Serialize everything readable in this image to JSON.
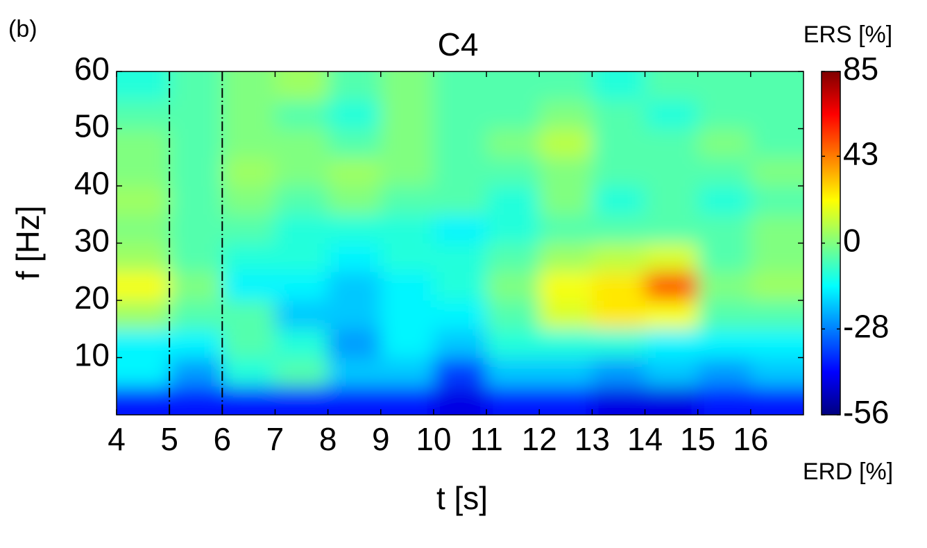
{
  "chart_data": {
    "type": "heatmap",
    "panel_label": "(b)",
    "title": "C4",
    "x_label": "t [s]",
    "y_label": "f [Hz]",
    "colorbar_top_label": "ERS [%]",
    "colorbar_bottom_label": "ERD [%]",
    "x": [
      4.5,
      5.5,
      6.5,
      7.5,
      8.5,
      9.5,
      10.5,
      11.5,
      12.5,
      13.5,
      14.5,
      15.5,
      16.5
    ],
    "y": [
      2.5,
      7.5,
      12.5,
      17.5,
      22.5,
      27.5,
      32.5,
      37.5,
      42.5,
      47.5,
      52.5,
      57.5
    ],
    "z": [
      [
        -40,
        -40,
        -40,
        -40,
        -40,
        -40,
        -45,
        -40,
        -40,
        -45,
        -45,
        -40,
        -40
      ],
      [
        -15,
        -25,
        -10,
        -5,
        -20,
        -20,
        -35,
        -20,
        -20,
        -25,
        -20,
        -25,
        -20
      ],
      [
        -15,
        -15,
        -5,
        -10,
        -25,
        -15,
        -20,
        -10,
        -10,
        -10,
        -15,
        -15,
        -15
      ],
      [
        5,
        -5,
        -5,
        -20,
        -20,
        -15,
        -15,
        -5,
        15,
        25,
        20,
        -5,
        -5
      ],
      [
        20,
        0,
        -15,
        -15,
        -20,
        -15,
        -10,
        0,
        20,
        25,
        50,
        0,
        5
      ],
      [
        5,
        -5,
        -10,
        -10,
        -15,
        -10,
        -10,
        -5,
        5,
        10,
        15,
        -5,
        0
      ],
      [
        0,
        -5,
        -5,
        -10,
        -10,
        -10,
        -15,
        -10,
        -5,
        -5,
        -5,
        -5,
        0
      ],
      [
        5,
        -5,
        0,
        -5,
        0,
        -5,
        -5,
        -10,
        0,
        -10,
        -5,
        -10,
        -5
      ],
      [
        0,
        -5,
        5,
        0,
        5,
        0,
        -5,
        -5,
        0,
        -5,
        -5,
        -5,
        0
      ],
      [
        0,
        -5,
        0,
        0,
        -5,
        0,
        -5,
        0,
        10,
        -5,
        -5,
        0,
        -5
      ],
      [
        -5,
        -5,
        0,
        -5,
        -10,
        0,
        -5,
        -5,
        0,
        -5,
        -10,
        -5,
        -5
      ],
      [
        -10,
        -5,
        0,
        5,
        -5,
        0,
        -5,
        -5,
        -5,
        -10,
        -5,
        -5,
        -5
      ]
    ],
    "xlim": [
      4,
      17
    ],
    "ylim": [
      0,
      60
    ],
    "xticks": [
      4,
      5,
      6,
      7,
      8,
      9,
      10,
      11,
      12,
      13,
      14,
      15,
      16
    ],
    "yticks": [
      10,
      20,
      30,
      40,
      50,
      60
    ],
    "zlim": [
      -56,
      85
    ],
    "zcenter": 0,
    "zticks": [
      -56,
      -28,
      0,
      43,
      85
    ],
    "colormap": "jet",
    "vlines": [
      5,
      6
    ]
  }
}
